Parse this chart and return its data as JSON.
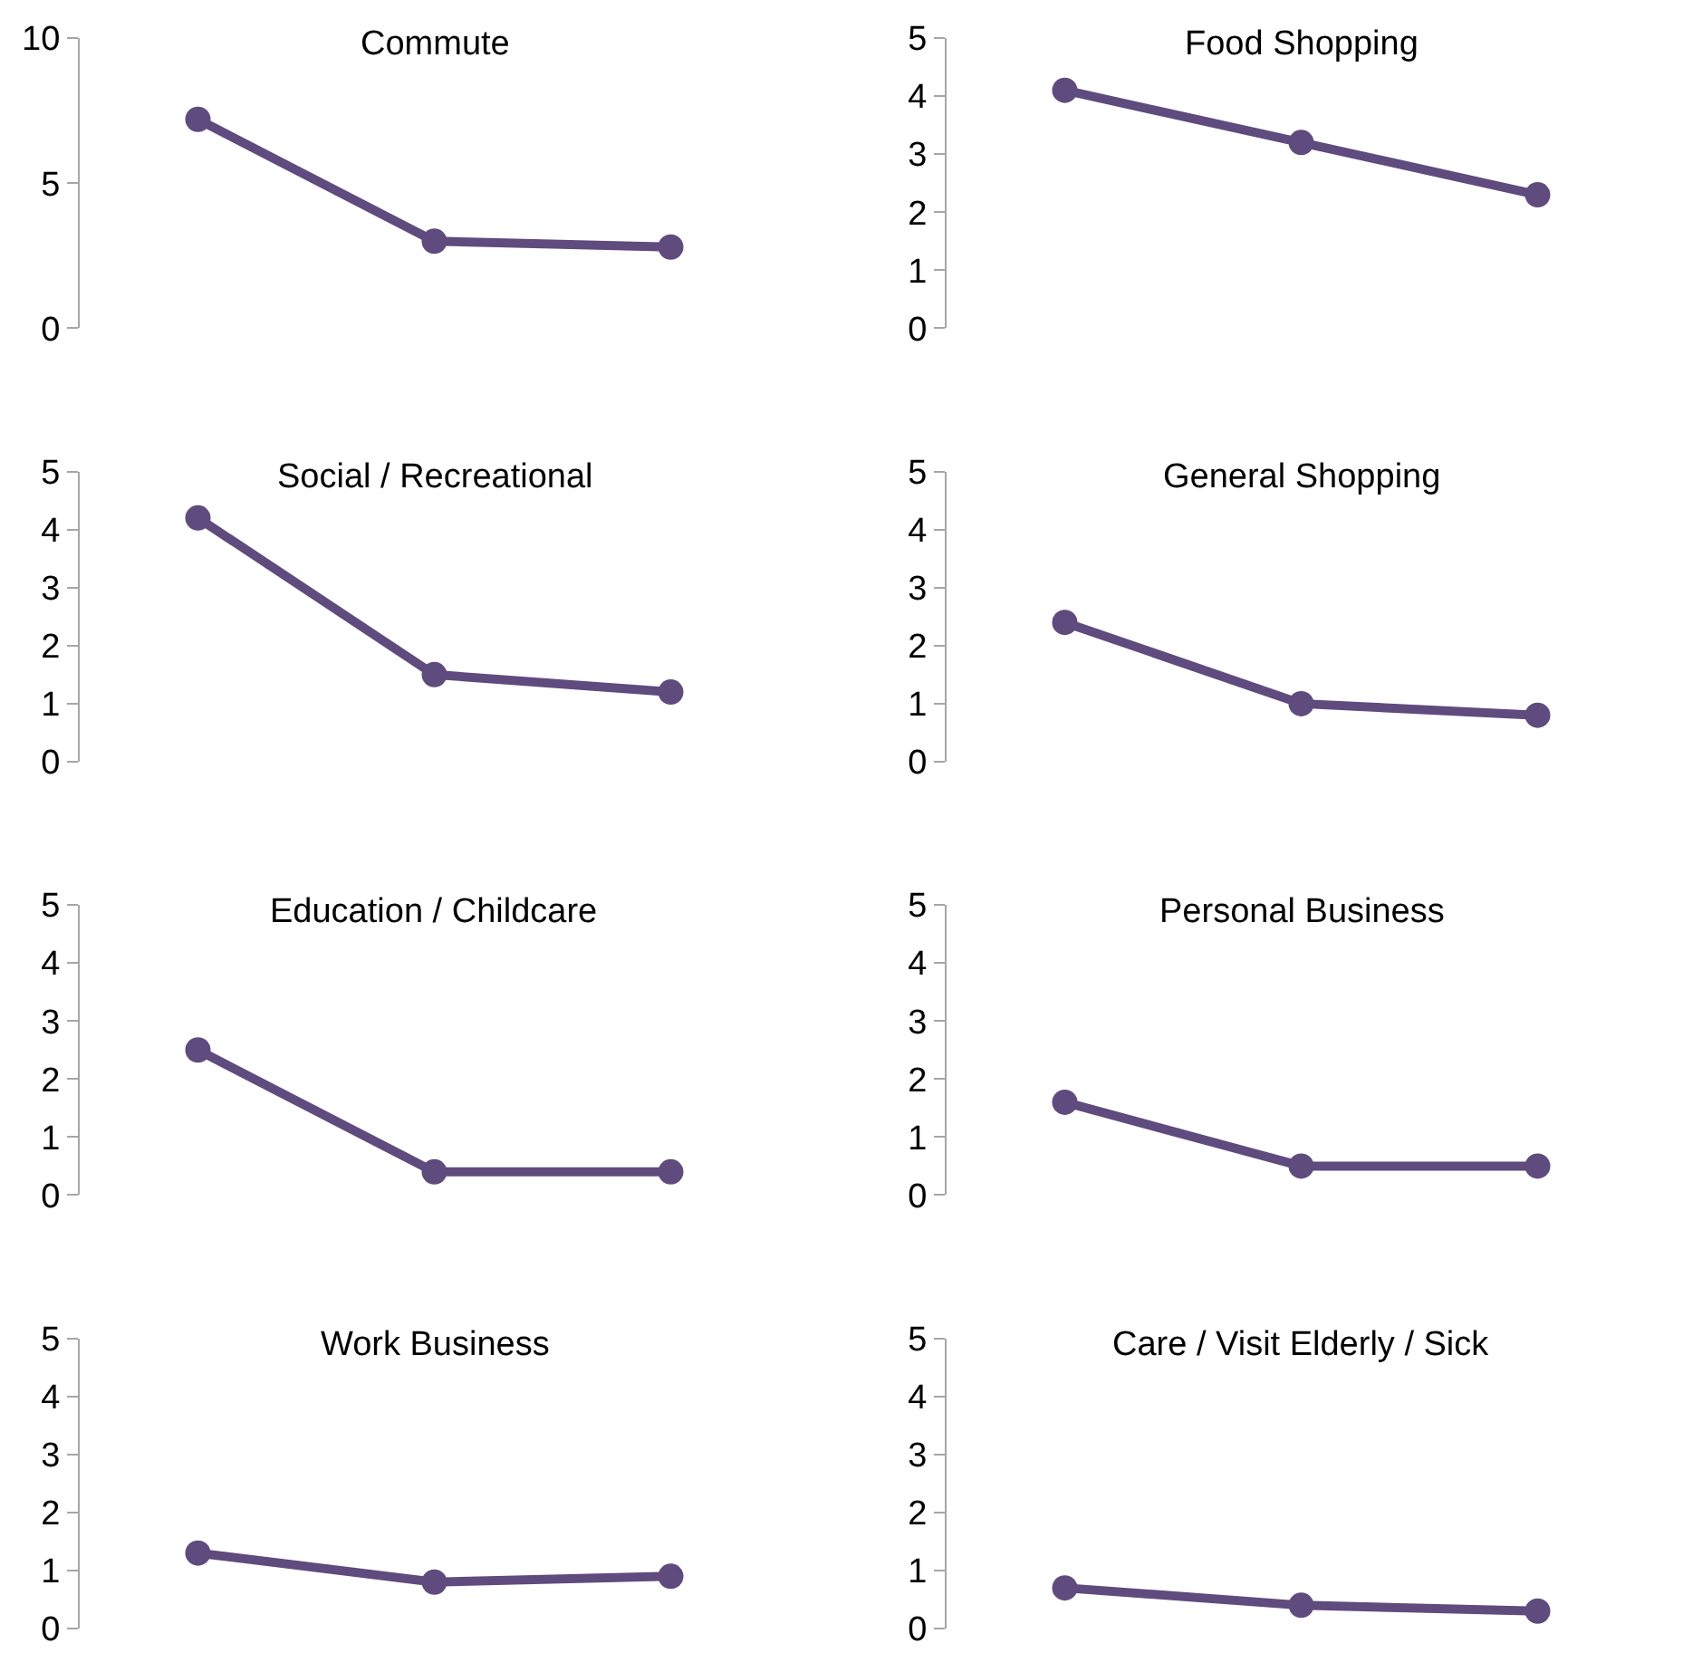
{
  "chart_data": [
    {
      "type": "line",
      "title": "Commute",
      "categories": [
        null,
        null,
        null
      ],
      "values": [
        7.2,
        3.0,
        2.8
      ],
      "color": "#5f4b7e",
      "ylim": [
        0,
        10
      ],
      "yticks": [
        0,
        5,
        10
      ],
      "tick_labels": "y",
      "marker": "circle"
    },
    {
      "type": "line",
      "title": "Food Shopping",
      "categories": [
        null,
        null,
        null
      ],
      "values": [
        4.1,
        3.2,
        2.3
      ],
      "color": "#5f4b7e",
      "ylim": [
        0,
        5
      ],
      "yticks": [
        0,
        1,
        2,
        3,
        4,
        5
      ],
      "tick_labels": "y",
      "marker": "circle"
    },
    {
      "type": "line",
      "title": "Social / Recreational",
      "categories": [
        null,
        null,
        null
      ],
      "values": [
        4.2,
        1.5,
        1.2
      ],
      "color": "#5f4b7e",
      "ylim": [
        0,
        5
      ],
      "yticks": [
        0,
        1,
        2,
        3,
        4,
        5
      ],
      "tick_labels": "y",
      "marker": "circle"
    },
    {
      "type": "line",
      "title": "General Shopping",
      "categories": [
        null,
        null,
        null
      ],
      "values": [
        2.4,
        1.0,
        0.8
      ],
      "color": "#5f4b7e",
      "ylim": [
        0,
        5
      ],
      "yticks": [
        0,
        1,
        2,
        3,
        4,
        5
      ],
      "tick_labels": "y",
      "marker": "circle"
    },
    {
      "type": "line",
      "title": "Education / Childcare",
      "categories": [
        null,
        null,
        null
      ],
      "values": [
        2.5,
        0.4,
        0.4
      ],
      "color": "#5f4b7e",
      "ylim": [
        0,
        5
      ],
      "yticks": [
        0,
        1,
        2,
        3,
        4,
        5
      ],
      "tick_labels": "y",
      "marker": "circle"
    },
    {
      "type": "line",
      "title": "Personal Business",
      "categories": [
        null,
        null,
        null
      ],
      "values": [
        1.6,
        0.5,
        0.5
      ],
      "color": "#5f4b7e",
      "ylim": [
        0,
        5
      ],
      "yticks": [
        0,
        1,
        2,
        3,
        4,
        5
      ],
      "tick_labels": "y",
      "marker": "circle"
    },
    {
      "type": "line",
      "title": "Work Business",
      "categories": [
        null,
        null,
        null
      ],
      "values": [
        1.3,
        0.8,
        0.9
      ],
      "color": "#5f4b7e",
      "ylim": [
        0,
        5
      ],
      "yticks": [
        0,
        1,
        2,
        3,
        4,
        5
      ],
      "tick_labels": "y",
      "marker": "circle"
    },
    {
      "type": "line",
      "title": "Care / Visit Elderly / Sick",
      "categories": [
        null,
        null,
        null
      ],
      "values": [
        0.7,
        0.4,
        0.3
      ],
      "color": "#5f4b7e",
      "ylim": [
        0,
        5
      ],
      "yticks": [
        0,
        1,
        2,
        3,
        4,
        5
      ],
      "tick_labels": "y",
      "marker": "circle"
    }
  ]
}
